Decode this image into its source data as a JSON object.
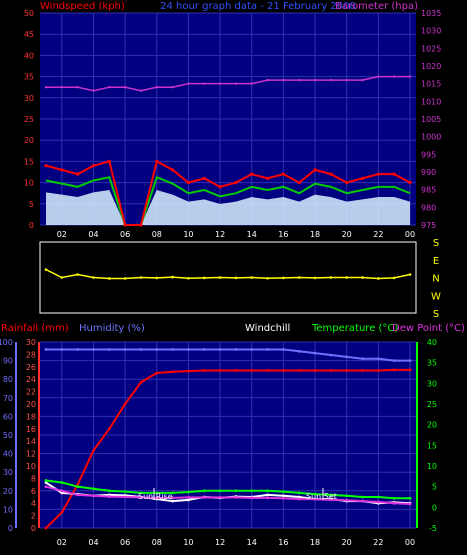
{
  "header": {
    "windspeed_label": "Windspeed (kph)",
    "title": "24 hour graph data - 21 February 2008",
    "barometer_label": "Barometer (hpa)"
  },
  "bottom_header": {
    "rainfall": "Rainfall (mm)",
    "humidity": "Humidity (%)",
    "windchill": "Windchill",
    "temperature": "Temperature (°C)",
    "dewpoint": "Dew Point (°C)"
  },
  "annotations": {
    "sun_rise": "Sun Rise",
    "sun_set": "Sun Set"
  },
  "time_ticks": [
    "02",
    "04",
    "06",
    "08",
    "10",
    "12",
    "14",
    "16",
    "18",
    "20",
    "22",
    "00"
  ],
  "colors": {
    "windspeed": "#ff0000",
    "gust_avg": "#00cc00",
    "wind_fill": "#d8f0ff",
    "barometer": "#cc33cc",
    "direction": "#ffff00",
    "rain": "#ff0000",
    "humidity": "#7070ff",
    "windchill": "#ffffff",
    "temperature": "#00ff00",
    "dewpoint": "#dd33dd",
    "plot_bg": "#000080",
    "grid": "#3030b0"
  },
  "chart_data": [
    {
      "type": "line",
      "title": "24 hour graph data - 21 February 2008",
      "xlabel": "",
      "x": [
        "01",
        "02",
        "03",
        "04",
        "05",
        "06",
        "07",
        "08",
        "09",
        "10",
        "11",
        "12",
        "13",
        "14",
        "15",
        "16",
        "17",
        "18",
        "19",
        "20",
        "21",
        "22",
        "23",
        "00"
      ],
      "left_axis": {
        "label": "Windspeed (kph)",
        "ticks": [
          0,
          5,
          10,
          15,
          20,
          25,
          30,
          35,
          40,
          45,
          50
        ],
        "ylim": [
          0,
          50
        ]
      },
      "right_axis": {
        "label": "Barometer (hpa)",
        "ticks": [
          975,
          980,
          985,
          990,
          995,
          1000,
          1005,
          1010,
          1015,
          1020,
          1025,
          1030,
          1035
        ],
        "ylim": [
          975,
          1035
        ]
      },
      "series": [
        {
          "name": "Windspeed (kph)",
          "axis": "left",
          "values": [
            14,
            13,
            12,
            14,
            15,
            0,
            0,
            15,
            13,
            10,
            11,
            9,
            10,
            12,
            11,
            12,
            10,
            13,
            12,
            10,
            11,
            12,
            12,
            10
          ]
        },
        {
          "name": "Barometer (hpa)",
          "axis": "right",
          "values": [
            1014,
            1014,
            1014,
            1013,
            1014,
            1014,
            1013,
            1014,
            1014,
            1015,
            1015,
            1015,
            1015,
            1015,
            1016,
            1016,
            1016,
            1016,
            1016,
            1016,
            1016,
            1017,
            1017,
            1017
          ]
        }
      ],
      "grid": true
    },
    {
      "type": "line",
      "title": "",
      "x": [
        "01",
        "02",
        "03",
        "04",
        "05",
        "06",
        "07",
        "08",
        "09",
        "10",
        "11",
        "12",
        "13",
        "14",
        "15",
        "16",
        "17",
        "18",
        "19",
        "20",
        "21",
        "22",
        "23",
        "00"
      ],
      "y_labels": [
        "S",
        "E",
        "N",
        "W",
        "S"
      ],
      "series": [
        {
          "name": "Wind Direction",
          "values": [
            220,
            180,
            195,
            180,
            175,
            175,
            180,
            178,
            182,
            176,
            178,
            180,
            178,
            180,
            176,
            178,
            180,
            178,
            180,
            180,
            180,
            175,
            178,
            195
          ]
        }
      ]
    },
    {
      "type": "line",
      "title": "",
      "x": [
        "01",
        "02",
        "03",
        "04",
        "05",
        "06",
        "07",
        "08",
        "09",
        "10",
        "11",
        "12",
        "13",
        "14",
        "15",
        "16",
        "17",
        "18",
        "19",
        "20",
        "21",
        "22",
        "23",
        "00"
      ],
      "axes": [
        {
          "label": "Humidity (%)",
          "ticks": [
            0,
            10,
            20,
            30,
            40,
            50,
            60,
            70,
            80,
            90,
            100
          ],
          "ylim": [
            0,
            100
          ]
        },
        {
          "label": "Rainfall (mm)",
          "ticks": [
            0,
            2,
            4,
            6,
            8,
            10,
            12,
            14,
            16,
            18,
            20,
            22,
            24,
            26,
            28,
            30
          ],
          "ylim": [
            0,
            30
          ]
        },
        {
          "label": "Temperature (°C)",
          "ticks": [
            -5,
            0,
            5,
            10,
            15,
            20,
            25,
            30,
            35,
            40
          ],
          "ylim": [
            -5,
            40
          ]
        }
      ],
      "series": [
        {
          "name": "Rainfall (mm)",
          "axis": "rain",
          "values": [
            0,
            2.5,
            7,
            12.5,
            16,
            20,
            23.5,
            25,
            25.2,
            25.3,
            25.4,
            25.4,
            25.4,
            25.4,
            25.4,
            25.4,
            25.4,
            25.4,
            25.4,
            25.4,
            25.4,
            25.4,
            25.5,
            25.5
          ]
        },
        {
          "name": "Humidity (%)",
          "axis": "humidity",
          "values": [
            96,
            96,
            96,
            96,
            96,
            96,
            96,
            96,
            96,
            96,
            96,
            96,
            96,
            96,
            96,
            96,
            95,
            94,
            93,
            92,
            91,
            91,
            90,
            90
          ]
        },
        {
          "name": "Windchill",
          "axis": "temperature",
          "values": [
            6,
            3.5,
            3.2,
            2.8,
            3,
            2.9,
            2.5,
            2,
            1.5,
            1.8,
            2.5,
            2.3,
            2.6,
            2.5,
            3,
            2.8,
            2.5,
            2,
            2,
            1.5,
            1.5,
            1,
            1.2,
            1
          ]
        },
        {
          "name": "Temperature (°C)",
          "axis": "temperature",
          "values": [
            6.5,
            6,
            5,
            4.5,
            4,
            3.8,
            3.5,
            3.5,
            3.5,
            3.7,
            4,
            4,
            4,
            4,
            4,
            3.8,
            3.5,
            3.2,
            3,
            2.8,
            2.5,
            2.5,
            2.2,
            2.2
          ]
        },
        {
          "name": "Dew Point (°C)",
          "axis": "temperature",
          "values": [
            5,
            4,
            3,
            2.8,
            2.6,
            2.5,
            2.4,
            2.3,
            2.3,
            2.4,
            2.4,
            2.4,
            2.4,
            2.3,
            2.3,
            2.2,
            2,
            2,
            1.8,
            1.7,
            1.5,
            1.3,
            1,
            0.8
          ]
        }
      ],
      "grid": true
    }
  ]
}
